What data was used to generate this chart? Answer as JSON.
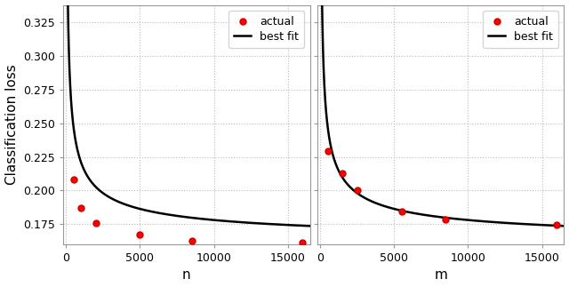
{
  "left": {
    "xlabel": "n",
    "scatter_x": [
      500,
      1000,
      2000,
      5000,
      8500,
      16000
    ],
    "scatter_y": [
      0.208,
      0.187,
      0.1755,
      0.1675,
      0.1625,
      0.161
    ],
    "xlim": [
      -200,
      16500
    ],
    "ylim": [
      0.16,
      0.338
    ]
  },
  "right": {
    "xlabel": "m",
    "scatter_x": [
      500,
      1500,
      2500,
      5500,
      8500,
      16000
    ],
    "scatter_y": [
      0.2295,
      0.2125,
      0.2005,
      0.1845,
      0.1785,
      0.1745
    ],
    "xlim": [
      -200,
      16500
    ],
    "ylim": [
      0.16,
      0.338
    ]
  },
  "ylabel": "Classification loss",
  "scatter_color": "#ff0000",
  "scatter_edgecolor": "#cc0000",
  "scatter_size": 25,
  "line_color": "#000000",
  "line_width": 1.8,
  "legend_labels": [
    "actual",
    "best fit"
  ],
  "grid_color": "#bbbbbb",
  "grid_style": "dotted",
  "yticks": [
    0.175,
    0.2,
    0.225,
    0.25,
    0.275,
    0.3,
    0.325
  ],
  "xticks": [
    0,
    5000,
    10000,
    15000
  ],
  "background": "#ffffff",
  "figsize": [
    6.4,
    3.23
  ],
  "dpi": 100
}
